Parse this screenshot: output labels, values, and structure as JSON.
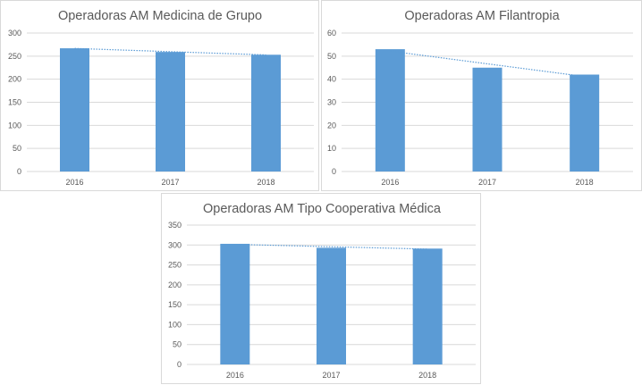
{
  "chart_data": [
    {
      "type": "bar",
      "title": "Operadoras AM Medicina de Grupo",
      "categories": [
        "2016",
        "2017",
        "2018"
      ],
      "series": [
        {
          "values": [
            267,
            259,
            253
          ]
        }
      ],
      "ylim": [
        0,
        300
      ],
      "yticks": [
        0,
        50,
        100,
        150,
        200,
        250,
        300
      ],
      "trendline": {
        "style": "dotted",
        "type": "linear"
      },
      "grid": true,
      "legend": "none",
      "bar_color": "#5b9bd5"
    },
    {
      "type": "bar",
      "title": "Operadoras AM Filantropia",
      "categories": [
        "2016",
        "2017",
        "2018"
      ],
      "series": [
        {
          "values": [
            53,
            45,
            42
          ]
        }
      ],
      "ylim": [
        0,
        60
      ],
      "yticks": [
        0,
        10,
        20,
        30,
        40,
        50,
        60
      ],
      "trendline": {
        "style": "dotted",
        "type": "linear"
      },
      "grid": true,
      "legend": "none",
      "bar_color": "#5b9bd5"
    },
    {
      "type": "bar",
      "title": "Operadoras AM Tipo Cooperativa Médica",
      "categories": [
        "2016",
        "2017",
        "2018"
      ],
      "series": [
        {
          "values": [
            303,
            293,
            291
          ]
        }
      ],
      "ylim": [
        0,
        350
      ],
      "yticks": [
        0,
        50,
        100,
        150,
        200,
        250,
        300,
        350
      ],
      "trendline": {
        "style": "dotted",
        "type": "linear"
      },
      "grid": true,
      "legend": "none",
      "bar_color": "#5b9bd5"
    }
  ]
}
